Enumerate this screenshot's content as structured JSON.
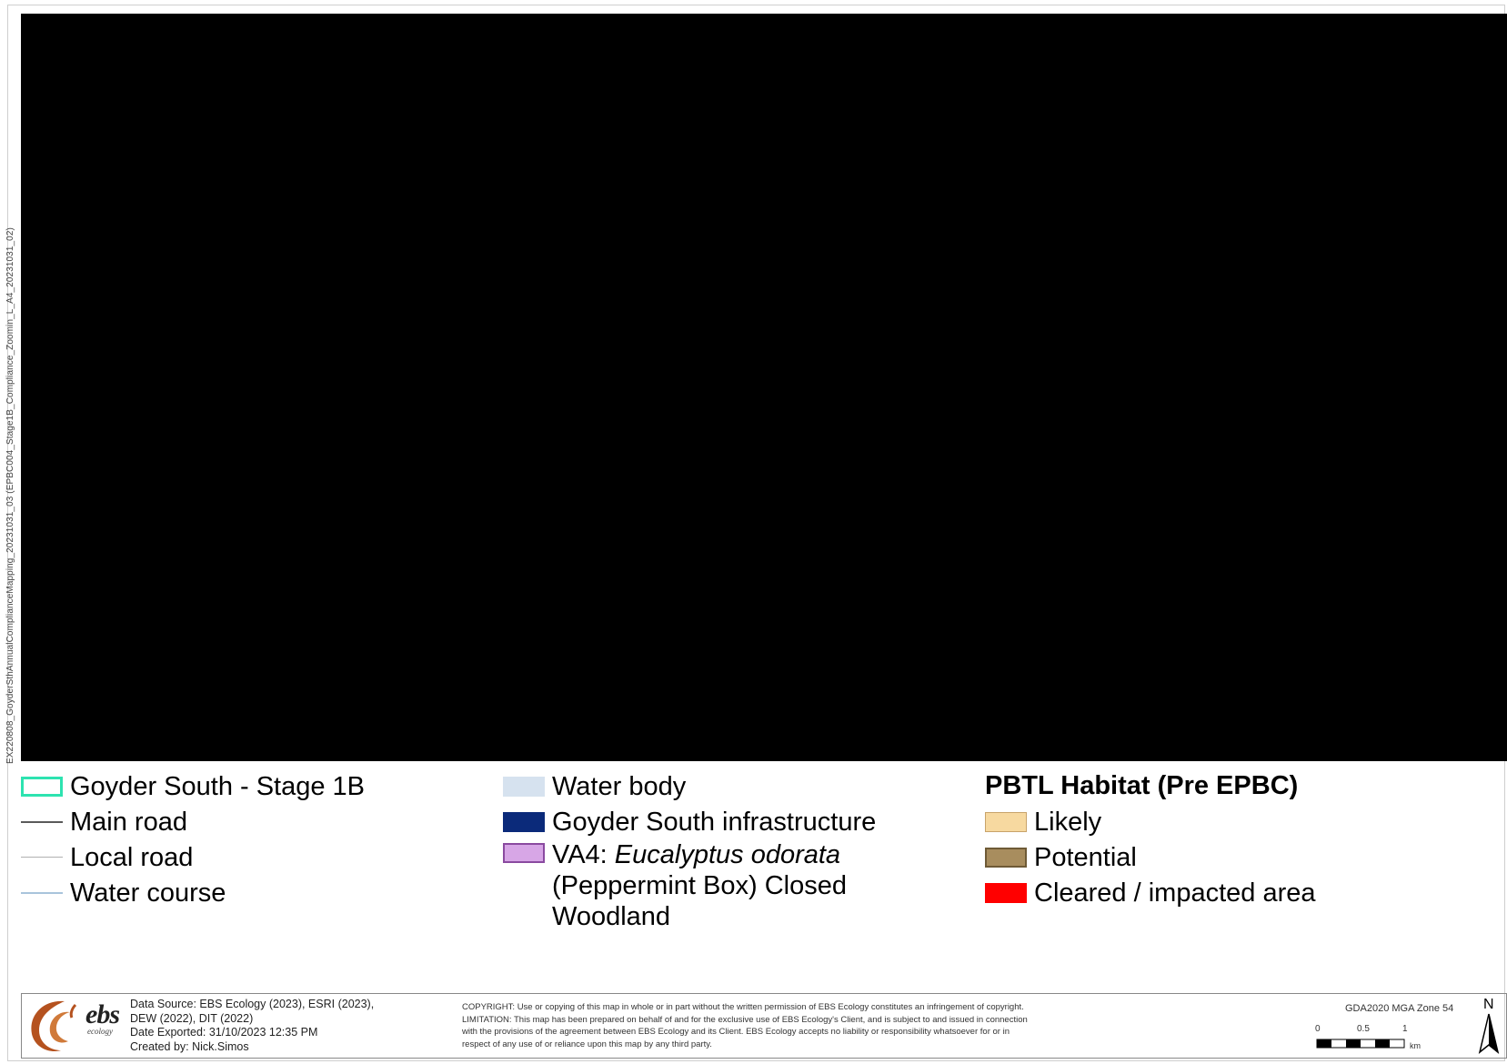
{
  "side_label": "EX220808_GoyderSthAnnualComplianceMapping_20231031_03 (EPBC004_Stage1B_Compliance_Zoomin_L_A4_20231031_02)",
  "legend": {
    "col1": [
      {
        "label": "Goyder South - Stage 1B",
        "kind": "box",
        "color": "#2de3b0"
      },
      {
        "label": "Main road",
        "kind": "line",
        "color": "#5a5a5a"
      },
      {
        "label": "Local road",
        "kind": "line",
        "color": "#b0b0b0"
      },
      {
        "label": "Water course",
        "kind": "line",
        "color": "#a9c4dc"
      }
    ],
    "col2": [
      {
        "label": "Water body",
        "kind": "fill",
        "color": "#d6e2ef"
      },
      {
        "label": "Goyder South infrastructure",
        "kind": "fill",
        "color": "#0b2a7a"
      },
      {
        "label_prefix": "VA4: ",
        "label_italic": "Eucalyptus odorata",
        "label_line1_rest": "",
        "label_line2": "(Peppermint Box) Closed",
        "label_line3": "Woodland",
        "kind": "fill",
        "color": "#d7a6e6",
        "border": "#8a4aa0"
      }
    ],
    "col3": {
      "heading": "PBTL Habitat (Pre EPBC)",
      "items": [
        {
          "label": "Likely",
          "kind": "fill",
          "color": "#f7d9a0",
          "border": "#c8a36a"
        },
        {
          "label": "Potential",
          "kind": "fill",
          "color": "#a88d5e",
          "border": "#6e5a36"
        },
        {
          "label": "Cleared / impacted area",
          "kind": "fill",
          "color": "#ff0000",
          "border": "#ff0000"
        }
      ]
    }
  },
  "footer": {
    "brand": "ebs",
    "brand_sub": "ecology",
    "source_lines": [
      "Data Source: EBS Ecology (2023), ESRI (2023),",
      "DEW (2022), DIT (2022)",
      "Date Exported: 31/10/2023 12:35 PM",
      "Created by: Nick.Simos"
    ],
    "copyright_lines": [
      "COPYRIGHT: Use or copying of this map in whole or in part without the written permission of EBS Ecology constitutes an infringement of copyright.",
      "LIMITATION: This map has been prepared on behalf of and for the exclusive use of EBS Ecology's Client, and is subject to and issued in connection",
      "with the provisions of the agreement between EBS Ecology and its Client. EBS Ecology accepts no liability or responsibility whatsoever for or in",
      "respect of any use of or reliance upon this map by any third party."
    ],
    "projection": "GDA2020 MGA Zone 54",
    "scale_labels": [
      "0",
      "0.5",
      "1"
    ],
    "scale_unit": "km",
    "north_label": "N"
  }
}
